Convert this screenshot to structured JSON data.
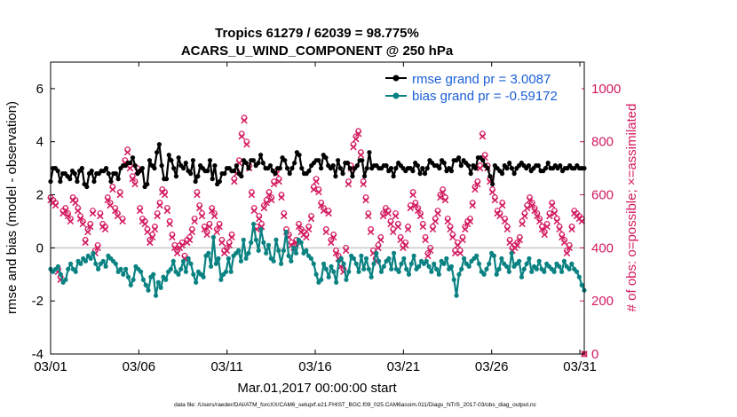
{
  "chart_data": {
    "type": "line",
    "title": "Tropics 61279 / 62039 = 98.775%",
    "subtitle": "ACARS_U_WIND_COMPONENT @ 250 hPa",
    "xlabel": "Mar.01,2017 00:00:00 start",
    "ylabel": "rmse and bias (model - observation)",
    "y2label": "# of obs: o=possible; ×=assimilated",
    "footnote": "data file: /Users/raeder/DAI/ATM_forcXX/CAM6_setup/f.e21.FHIST_BGC.f09_025.CAM6assim.011/Diags_NTrS_2017-03/obs_diag_output.nc",
    "x_ticks": [
      {
        "label": "03/01",
        "day": 0
      },
      {
        "label": "03/06",
        "day": 5
      },
      {
        "label": "03/11",
        "day": 10
      },
      {
        "label": "03/16",
        "day": 15
      },
      {
        "label": "03/21",
        "day": 20
      },
      {
        "label": "03/26",
        "day": 25
      },
      {
        "label": "03/31",
        "day": 30
      }
    ],
    "xlim": [
      0,
      30.25
    ],
    "ylim": [
      -4,
      7
    ],
    "y_ticks": [
      "-4",
      "-2",
      "0",
      "2",
      "4",
      "6"
    ],
    "y2lim": [
      0,
      1100
    ],
    "y2_ticks": [
      "0",
      "200",
      "400",
      "600",
      "800",
      "1000"
    ],
    "legend_position": "top-right",
    "colors": {
      "rmse": "#000000",
      "bias": "#0a8282",
      "obs": "#d3195f",
      "zero_line": "#c8c8c8",
      "legend_text": "#1a5fd8",
      "axis": "#000000"
    },
    "series": [
      {
        "name": "rmse grand pr = 3.0087",
        "color": "#000000",
        "values": [
          2.5,
          3.0,
          3.0,
          2.9,
          2.5,
          2.8,
          2.8,
          2.7,
          2.6,
          2.9,
          2.8,
          2.5,
          2.9,
          3.0,
          2.4,
          2.3,
          2.8,
          2.9,
          2.5,
          2.8,
          2.8,
          2.9,
          2.9,
          3.0,
          2.8,
          2.5,
          2.8,
          2.8,
          2.6,
          3.0,
          3.1,
          3.1,
          3.2,
          3.2,
          3.4,
          3.1,
          2.8,
          2.9,
          3.0,
          2.3,
          2.4,
          3.3,
          3.1,
          3.0,
          3.6,
          3.9,
          3.1,
          2.6,
          2.6,
          3.5,
          3.3,
          3.0,
          2.7,
          3.4,
          3.1,
          3.0,
          3.2,
          2.9,
          2.8,
          3.3,
          2.5,
          2.7,
          3.1,
          3.0,
          2.9,
          2.9,
          3.3,
          2.6,
          3.1,
          2.4,
          2.5,
          2.8,
          2.8,
          3.0,
          3.0,
          2.9,
          2.9,
          3.1,
          2.8,
          2.7,
          3.3,
          3.2,
          3.0,
          3.3,
          3.3,
          3.1,
          3.2,
          3.5,
          3.2,
          3.0,
          3.0,
          3.1,
          2.9,
          2.8,
          3.0,
          3.0,
          3.4,
          3.3,
          3.0,
          2.8,
          3.0,
          3.2,
          3.6,
          3.5,
          3.0,
          2.8,
          2.8,
          2.9,
          3.1,
          3.2,
          3.3,
          3.3,
          3.0,
          3.5,
          3.4,
          3.1,
          3.0,
          3.1,
          2.7,
          3.3,
          3.0,
          2.8,
          3.2,
          3.2,
          3.0,
          2.7,
          3.0,
          3.1,
          3.3,
          3.3,
          2.7,
          3.0,
          3.6,
          3.0,
          3.1,
          3.1,
          3.0,
          3.0,
          3.1,
          3.1,
          2.9,
          3.0,
          2.7,
          3.0,
          3.2,
          3.1,
          3.0,
          2.9,
          3.0,
          3.0,
          2.9,
          3.2,
          3.1,
          2.8,
          3.0,
          2.8,
          3.0,
          3.3,
          3.2,
          3.1,
          3.1,
          3.0,
          3.3,
          3.2,
          2.9,
          3.0,
          2.9,
          3.3,
          3.3,
          3.4,
          3.1,
          3.3,
          3.2,
          3.1,
          2.8,
          3.1,
          3.0,
          3.4,
          3.4,
          3.3,
          3.1,
          3.0,
          2.7,
          2.4,
          3.1,
          3.0,
          2.9,
          2.8,
          3.1,
          3.0,
          3.2,
          3.0,
          2.8,
          3.0,
          3.1,
          3.2,
          3.1,
          3.0,
          3.1,
          2.9,
          3.0,
          3.1,
          3.1,
          2.9,
          2.9,
          3.0,
          3.2,
          3.0,
          3.0,
          3.1,
          3.0,
          3.1,
          2.9,
          3.0,
          3.0,
          3.1,
          3.0,
          3.0,
          3.1,
          3.0,
          3.0,
          3.0
        ]
      },
      {
        "name": "bias grand pr = -0.59172",
        "color": "#0a8282",
        "values": [
          -0.8,
          -0.9,
          -0.8,
          -0.7,
          -1.0,
          -1.3,
          -1.2,
          -0.8,
          -0.6,
          -0.8,
          -0.9,
          -0.5,
          -0.6,
          -0.4,
          -0.5,
          -0.3,
          -0.4,
          -0.2,
          -0.6,
          -0.8,
          -0.6,
          -0.5,
          -0.7,
          -0.3,
          -0.4,
          -0.5,
          -0.6,
          -0.9,
          -0.8,
          -1.0,
          -0.8,
          -1.1,
          -1.4,
          -1.2,
          -0.7,
          -0.8,
          -0.9,
          -1.2,
          -1.4,
          -1.6,
          -1.1,
          -1.0,
          -1.8,
          -1.3,
          -1.5,
          -1.1,
          -1.2,
          -0.9,
          -0.8,
          -0.5,
          -0.9,
          -1.0,
          -0.8,
          -0.5,
          -0.9,
          -0.4,
          -0.6,
          -1.0,
          -1.3,
          -0.9,
          -1.0,
          -1.1,
          -0.3,
          -0.2,
          -0.7,
          0.4,
          -0.6,
          -0.4,
          -1.2,
          -1.0,
          -0.9,
          -0.4,
          -0.9,
          -0.3,
          -0.2,
          -0.1,
          -0.5,
          0.3,
          -0.4,
          -0.2,
          0.2,
          0.9,
          0.3,
          -0.1,
          0.7,
          0.2,
          -0.2,
          0.1,
          -0.4,
          -0.5,
          0.3,
          -0.1,
          -0.6,
          -0.1,
          0.6,
          -0.3,
          -0.5,
          0.0,
          -0.2,
          0.3,
          0.2,
          -0.2,
          -0.1,
          -0.3,
          -0.4,
          -0.6,
          -1.0,
          -1.3,
          -1.2,
          -0.6,
          -0.8,
          -1.1,
          -0.7,
          -0.9,
          -1.3,
          -0.5,
          -0.4,
          -0.6,
          -1.2,
          -0.9,
          -0.3,
          -0.4,
          -0.6,
          -0.9,
          -0.3,
          -0.8,
          -0.4,
          -0.8,
          -1.1,
          -0.6,
          -0.2,
          -0.5,
          -0.9,
          -0.7,
          -0.5,
          -0.4,
          -0.8,
          -0.2,
          -0.8,
          -0.9,
          -0.6,
          -0.4,
          -0.8,
          -1.0,
          -0.6,
          -0.3,
          -0.8,
          -0.7,
          -0.5,
          -0.6,
          -0.5,
          -0.7,
          -0.9,
          -0.6,
          -0.8,
          -1.0,
          -0.5,
          -0.6,
          -0.4,
          -0.8,
          -0.7,
          -1.2,
          -1.8,
          -1.0,
          -0.8,
          -0.4,
          -0.6,
          -0.7,
          -0.5,
          -0.4,
          -0.3,
          -0.6,
          -0.9,
          -1.0,
          -0.8,
          -0.6,
          -0.2,
          -0.3,
          -1.0,
          -0.8,
          -0.4,
          -0.6,
          -0.7,
          -0.9,
          -0.2,
          -0.7,
          -0.6,
          -0.5,
          -1.1,
          -0.8,
          -0.6,
          -0.4,
          -0.9,
          -0.7,
          -0.8,
          -0.5,
          -0.8,
          -0.9,
          -0.6,
          -0.7,
          -0.8,
          -0.9,
          -0.6,
          -0.7,
          -0.9,
          -0.5,
          -0.7,
          -0.8,
          -0.6,
          -0.8,
          -0.9,
          -1.1,
          -1.4,
          -1.6
        ]
      }
    ],
    "obs_assimilated_values": [
      580,
      570,
      560,
      310,
      280,
      530,
      540,
      520,
      500,
      580,
      570,
      540,
      510,
      490,
      420,
      460,
      480,
      530,
      380,
      400,
      520,
      480,
      470,
      580,
      560,
      620,
      540,
      520,
      600,
      500,
      720,
      760,
      700,
      660,
      640,
      690,
      540,
      500,
      490,
      460,
      420,
      440,
      470,
      520,
      560,
      610,
      600,
      540,
      490,
      440,
      400,
      380,
      400,
      410,
      360,
      420,
      430,
      460,
      500,
      600,
      550,
      520,
      470,
      450,
      480,
      540,
      520,
      460,
      480,
      420,
      380,
      390,
      410,
      440,
      650,
      680,
      720,
      820,
      880,
      790,
      700,
      600,
      540,
      470,
      510,
      480,
      550,
      570,
      600,
      580,
      640,
      680,
      650,
      590,
      520,
      460,
      440,
      410,
      400,
      420,
      480,
      460,
      450,
      440,
      470,
      510,
      620,
      650,
      610,
      560,
      540,
      460,
      530,
      420,
      440,
      380,
      360,
      330,
      310,
      390,
      640,
      700,
      780,
      810,
      830,
      750,
      640,
      580,
      520,
      460,
      380,
      350,
      400,
      430,
      520,
      540,
      530,
      490,
      460,
      520,
      480,
      430,
      400,
      410,
      470,
      550,
      600,
      560,
      540,
      520,
      480,
      430,
      370,
      390,
      470,
      500,
      530,
      590,
      610,
      580,
      500,
      470,
      440,
      380,
      410,
      380,
      430,
      470,
      490,
      500,
      560,
      620,
      640,
      700,
      820,
      740,
      700,
      650,
      610,
      580,
      530,
      520,
      560,
      500,
      470,
      420,
      390,
      400,
      410,
      430,
      490,
      520,
      550,
      580,
      560,
      540,
      520,
      500,
      470,
      450,
      480,
      520,
      560,
      530,
      500,
      470,
      440,
      420,
      380,
      400,
      470,
      530,
      520,
      510,
      500,
      0
    ],
    "obs_possible_values": [
      590,
      580,
      570,
      320,
      290,
      540,
      550,
      530,
      510,
      590,
      580,
      550,
      520,
      500,
      430,
      470,
      490,
      540,
      390,
      410,
      530,
      490,
      480,
      590,
      570,
      630,
      550,
      530,
      610,
      510,
      730,
      770,
      710,
      670,
      650,
      700,
      550,
      510,
      500,
      470,
      430,
      450,
      480,
      530,
      570,
      620,
      610,
      550,
      500,
      450,
      410,
      390,
      410,
      420,
      370,
      430,
      440,
      470,
      510,
      610,
      560,
      530,
      480,
      460,
      490,
      550,
      530,
      470,
      490,
      430,
      390,
      400,
      420,
      450,
      660,
      690,
      730,
      830,
      890,
      800,
      710,
      610,
      550,
      480,
      520,
      490,
      560,
      580,
      610,
      590,
      650,
      690,
      660,
      600,
      530,
      470,
      450,
      420,
      410,
      430,
      490,
      470,
      460,
      450,
      480,
      520,
      630,
      660,
      620,
      570,
      550,
      470,
      540,
      430,
      450,
      390,
      370,
      340,
      320,
      400,
      650,
      710,
      790,
      820,
      840,
      760,
      650,
      590,
      530,
      470,
      390,
      360,
      410,
      440,
      530,
      550,
      540,
      500,
      470,
      530,
      490,
      440,
      410,
      420,
      480,
      560,
      610,
      570,
      550,
      530,
      490,
      440,
      380,
      400,
      480,
      510,
      540,
      600,
      620,
      590,
      510,
      480,
      450,
      390,
      420,
      390,
      440,
      480,
      500,
      510,
      570,
      630,
      650,
      710,
      830,
      750,
      710,
      660,
      620,
      590,
      540,
      530,
      570,
      510,
      480,
      430,
      400,
      410,
      420,
      440,
      500,
      530,
      560,
      590,
      570,
      550,
      530,
      510,
      480,
      460,
      490,
      530,
      570,
      540,
      510,
      480,
      450,
      430,
      390,
      410,
      480,
      540,
      530,
      520,
      510,
      0
    ]
  }
}
